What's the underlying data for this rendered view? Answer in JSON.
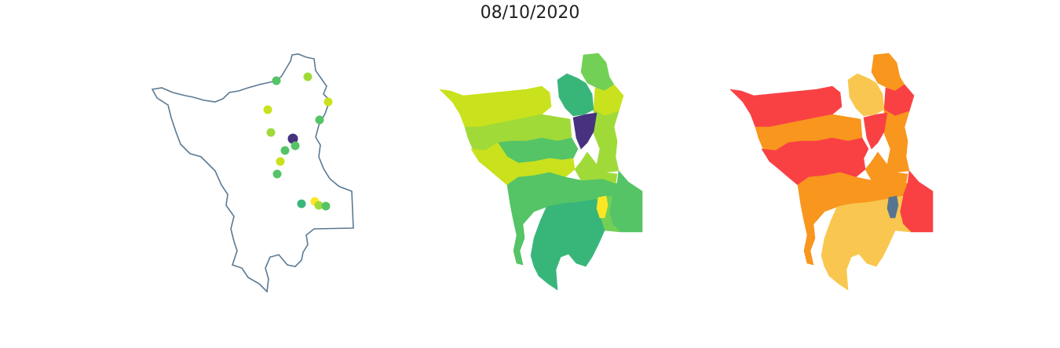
{
  "title": "08/10/2020",
  "colors": {
    "outline": "#5a7a93",
    "viridis_dark": "#46327e",
    "viridis_teal": "#38b67a",
    "viridis_green": "#54c466",
    "viridis_lime": "#73d056",
    "viridis_yellowgreen": "#a0da39",
    "viridis_chartreuse": "#c9e21d",
    "viridis_yellow": "#fde725",
    "risk_red": "#f94144",
    "risk_orange": "#f8961e",
    "risk_yellow": "#f9c74f",
    "risk_blue": "#577590"
  },
  "maps": [
    {
      "name": "points",
      "points": [
        {
          "color": "viridis_green"
        },
        {
          "color": "viridis_yellowgreen"
        },
        {
          "color": "viridis_chartreuse"
        },
        {
          "color": "viridis_chartreuse"
        },
        {
          "color": "viridis_green"
        },
        {
          "color": "viridis_yellowgreen"
        },
        {
          "color": "viridis_dark"
        },
        {
          "color": "viridis_green"
        },
        {
          "color": "viridis_green"
        },
        {
          "color": "viridis_chartreuse"
        },
        {
          "color": "viridis_green"
        },
        {
          "color": "viridis_teal"
        },
        {
          "color": "viridis_yellow"
        },
        {
          "color": "viridis_yellowgreen"
        },
        {
          "color": "viridis_green"
        }
      ]
    },
    {
      "name": "viridis-regions",
      "regions": [
        "viridis_lime",
        "viridis_chartreuse",
        "viridis_yellowgreen",
        "viridis_chartreuse",
        "viridis_yellowgreen",
        "viridis_teal",
        "viridis_green",
        "viridis_chartreuse",
        "viridis_dark",
        "viridis_green",
        "viridis_yellowgreen",
        "viridis_green",
        "viridis_lime",
        "viridis_teal",
        "viridis_yellow"
      ]
    },
    {
      "name": "risk-regions",
      "regions": [
        "risk_orange",
        "risk_red",
        "risk_orange",
        "risk_red",
        "risk_orange",
        "risk_yellow",
        "risk_red",
        "risk_red",
        "risk_red",
        "risk_orange",
        "risk_orange",
        "risk_red",
        "risk_yellow",
        "risk_yellow",
        "risk_blue"
      ]
    }
  ]
}
